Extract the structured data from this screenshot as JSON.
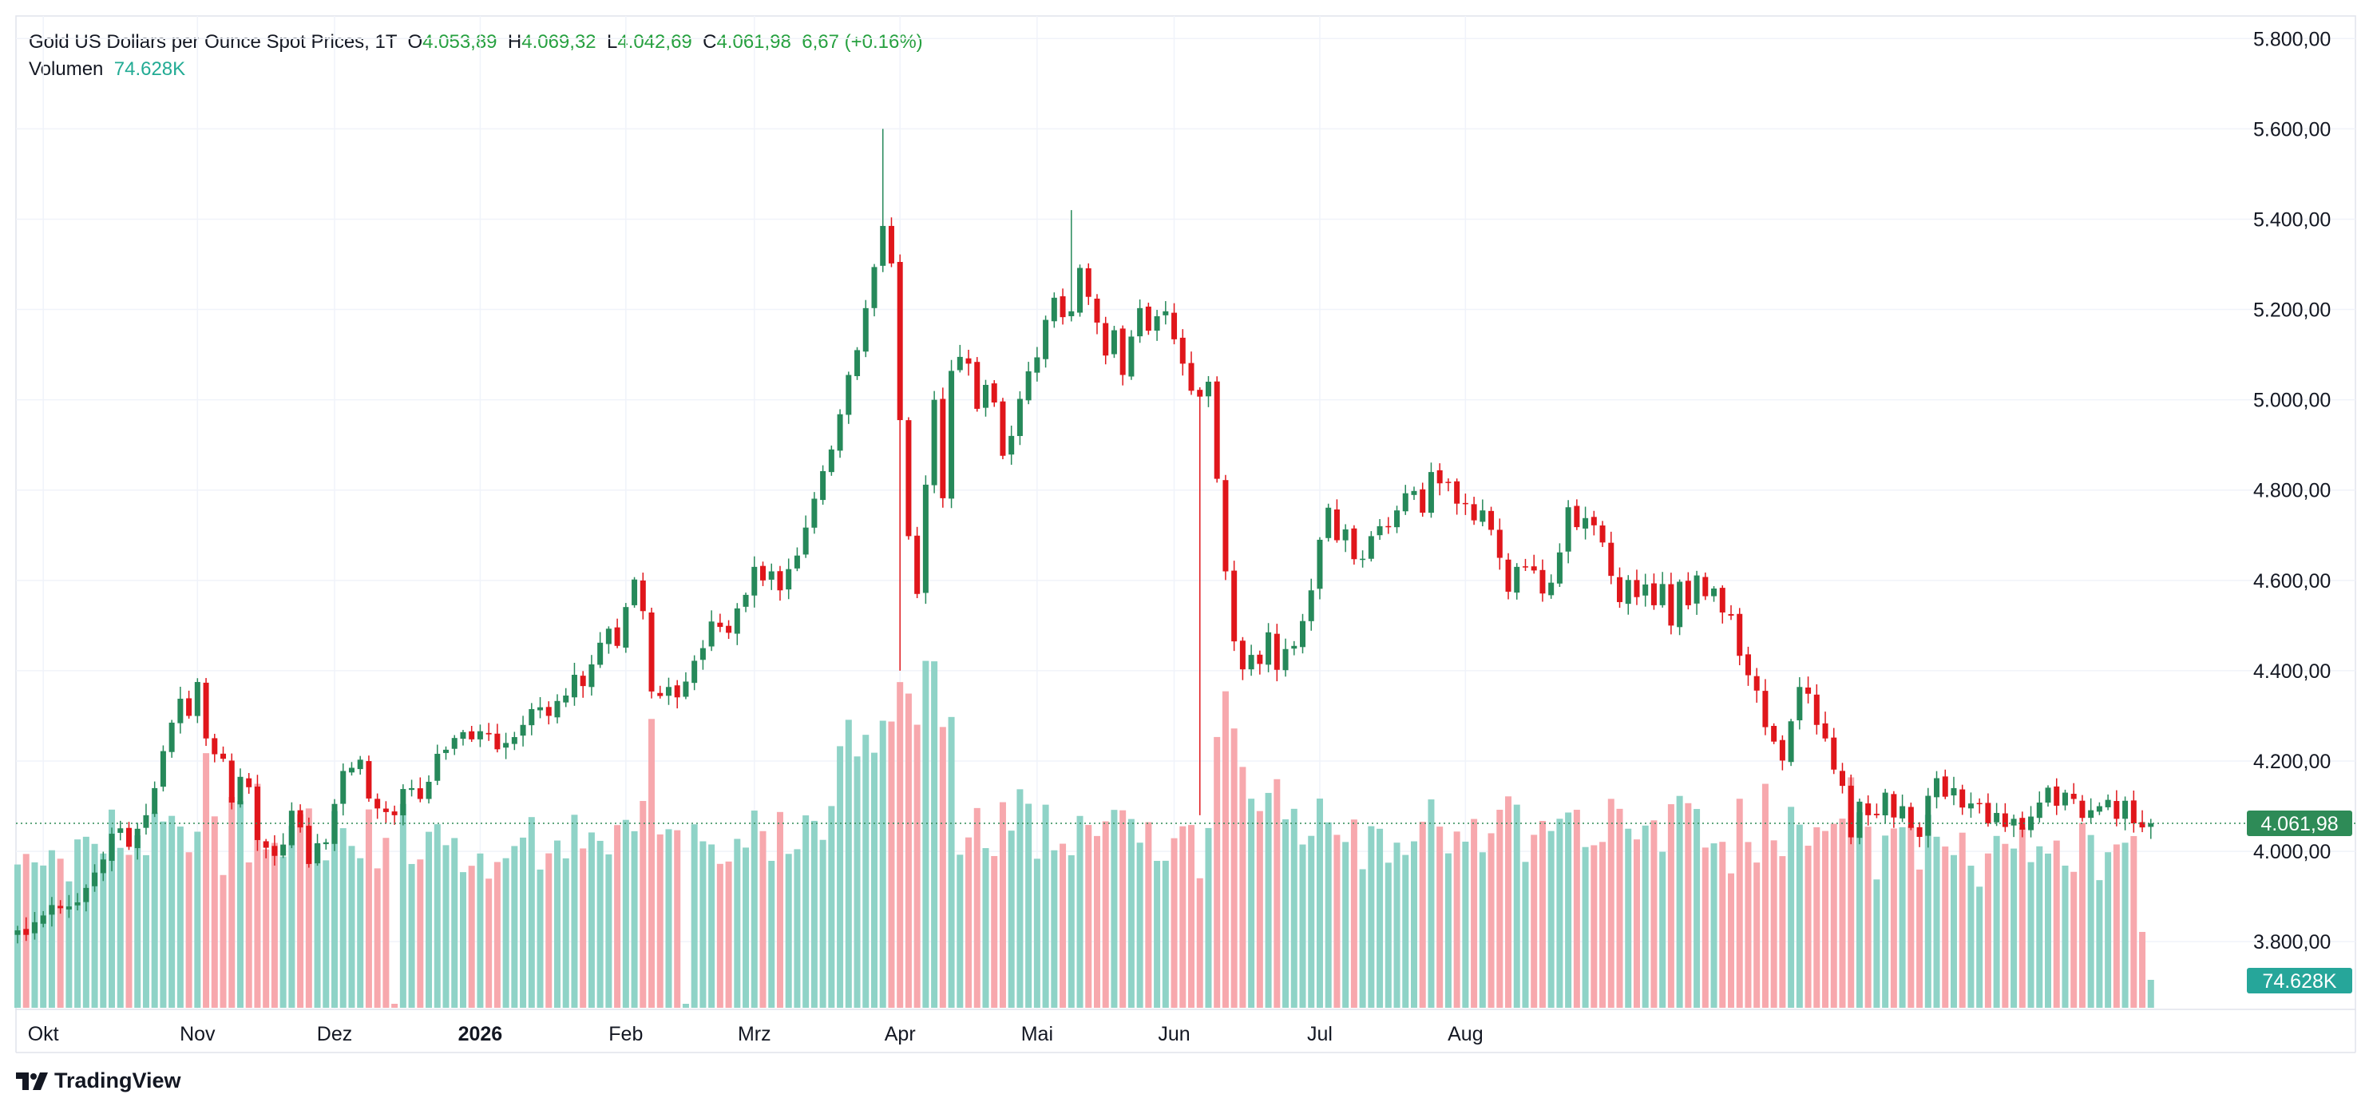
{
  "legend": {
    "symbol": "Gold US Dollars per Ounce Spot Prices, 1T",
    "o_label": "O",
    "o_value": "4.053,89",
    "h_label": "H",
    "h_value": "4.069,32",
    "l_label": "L",
    "l_value": "4.042,69",
    "c_label": "C",
    "c_value": "4.061,98",
    "change": "6,67 (+0.16%)",
    "volume_label": "Volumen",
    "volume_value": "74.628K"
  },
  "branding": {
    "name": "TradingView"
  },
  "colors": {
    "up": "#26895a",
    "down": "#e0161b",
    "vol_up": "#8fd3c7",
    "vol_down": "#f7a8ad",
    "price_tag": "#2e8b57",
    "vol_tag": "#26a69a"
  },
  "chart_data": {
    "type": "candlestick",
    "ylim": [
      3650,
      5850
    ],
    "y_ticks": [
      "5.800,00",
      "5.600,00",
      "5.400,00",
      "5.200,00",
      "5.000,00",
      "4.800,00",
      "4.600,00",
      "4.400,00",
      "4.200,00",
      "4.000,00",
      "3.800,00"
    ],
    "y_tick_values": [
      5800,
      5600,
      5400,
      5200,
      5000,
      4800,
      4600,
      4400,
      4200,
      4000,
      3800
    ],
    "x_labels": [
      "Okt",
      "Nov",
      "Dez",
      "2026",
      "Feb",
      "Mrz",
      "Apr",
      "Mai",
      "Jun",
      "Jul",
      "Aug"
    ],
    "x_label_bar_index": [
      3,
      21,
      37,
      54,
      71,
      86,
      103,
      119,
      135,
      152,
      169
    ],
    "last_price_label": "4.061,98",
    "last_volume_label": "74.628K",
    "grid": true,
    "legend_position": "top-left",
    "series": [
      {
        "close": [
          3825,
          3815,
          3843,
          3858,
          3881,
          3874,
          3878,
          3887,
          3919,
          3953,
          3982,
          4039,
          4051,
          4010,
          4050,
          4080,
          4140,
          4222,
          4285,
          4338,
          4300,
          4375,
          4250,
          4215,
          4205,
          4108,
          4165,
          4142,
          4025,
          4008,
          3990,
          4015,
          4090,
          4053,
          3972,
          4018,
          4020,
          4105,
          4178,
          4185,
          4203,
          4117,
          4095,
          4087,
          4080,
          4138,
          4140,
          4116,
          4154,
          4216,
          4225,
          4251,
          4264,
          4248,
          4266,
          4259,
          4226,
          4240,
          4253,
          4280,
          4315,
          4319,
          4300,
          4333,
          4345,
          4391,
          4366,
          4414,
          4462,
          4493,
          4455,
          4541,
          4602,
          4532,
          4354,
          4344,
          4364,
          4341,
          4376,
          4422,
          4450,
          4509,
          4497,
          4484,
          4538,
          4568,
          4630,
          4600,
          4620,
          4578,
          4625,
          4655,
          4717,
          4781,
          4842,
          4890,
          4968,
          5055,
          5110,
          5203,
          5294,
          5385,
          5302,
          4955,
          4698,
          4570,
          4812,
          5000,
          4782,
          5064,
          5095,
          5080,
          4980,
          5033,
          4994,
          4876,
          4920,
          5002,
          5063,
          5094,
          5177,
          5226,
          5183,
          5196,
          5292,
          5228,
          5171,
          5098,
          5154,
          5055,
          5140,
          5203,
          5153,
          5185,
          5196,
          5134,
          5080,
          5020,
          5007,
          5040,
          4825,
          4620,
          4465,
          4403,
          4435,
          4415,
          4485,
          4402,
          4448,
          4455,
          4510,
          4578,
          4690,
          4761,
          4689,
          4713,
          4647,
          4648,
          4698,
          4720,
          4720,
          4755,
          4793,
          4798,
          4750,
          4840,
          4815,
          4818,
          4770,
          4770,
          4733,
          4755,
          4712,
          4650,
          4575,
          4630,
          4630,
          4622,
          4571,
          4595,
          4662,
          4762,
          4718,
          4738,
          4722,
          4684,
          4610,
          4552,
          4601,
          4563,
          4591,
          4545,
          4592,
          4500,
          4597,
          4545,
          4611,
          4565,
          4582,
          4529,
          4522,
          4433,
          4390,
          4356,
          4275,
          4243,
          4201,
          4288,
          4364,
          4349,
          4280,
          4250,
          4181,
          4145,
          4031,
          4110,
          4080,
          4080,
          4130,
          4075,
          4100,
          4052,
          4032,
          4123,
          4162,
          4121,
          4140,
          4097,
          4106,
          4106,
          4062,
          4085,
          4054,
          4072,
          4048,
          4077,
          4108,
          4141,
          4101,
          4130,
          4116,
          4074,
          4091,
          4100,
          4114,
          4072,
          4112,
          4062,
          4053,
          4062
        ],
        "volume_units": "thousands"
      }
    ]
  }
}
